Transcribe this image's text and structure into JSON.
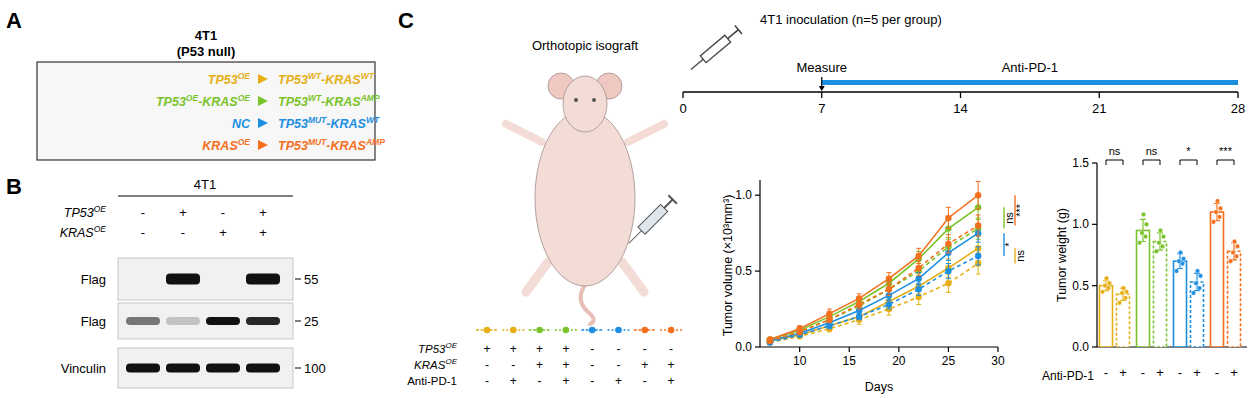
{
  "panel_labels": [
    "A",
    "B",
    "C"
  ],
  "panel_a": {
    "title": "4T1",
    "subtitle": "(P53 null)",
    "rows": [
      {
        "from": [
          {
            "text": "TP53",
            "sup": "OE"
          }
        ],
        "to": [
          {
            "text": "TP53",
            "sup": "WT"
          },
          {
            "text": "-KRAS",
            "sup": "WT"
          }
        ],
        "color": "#E6AF16"
      },
      {
        "from": [
          {
            "text": "TP53",
            "sup": "OE"
          },
          {
            "text": "-KRAS",
            "sup": "OE"
          }
        ],
        "to": [
          {
            "text": "TP53",
            "sup": "WT"
          },
          {
            "text": "-KRAS",
            "sup": "AMP"
          }
        ],
        "color": "#7BC32B"
      },
      {
        "from": [
          {
            "text": "NC"
          }
        ],
        "to": [
          {
            "text": "TP53",
            "sup": "MUT"
          },
          {
            "text": "-KRAS",
            "sup": "WT"
          }
        ],
        "color": "#1D8FE1"
      },
      {
        "from": [
          {
            "text": "KRAS",
            "sup": "OE"
          }
        ],
        "to": [
          {
            "text": "TP53",
            "sup": "MUT"
          },
          {
            "text": "-KRAS",
            "sup": "AMP"
          }
        ],
        "color": "#F4701F"
      }
    ]
  },
  "panel_b": {
    "title": "4T1",
    "conditions": [
      {
        "label": [
          {
            "text": "TP53",
            "sup": "OE"
          }
        ],
        "values": [
          "-",
          "+",
          "-",
          "+"
        ]
      },
      {
        "label": [
          {
            "text": "KRAS",
            "sup": "OE"
          }
        ],
        "values": [
          "-",
          "-",
          "+",
          "+"
        ]
      }
    ],
    "blots": [
      {
        "label": "Flag",
        "marker": 55,
        "bands": [
          0,
          1,
          0,
          1
        ]
      },
      {
        "label": "Flag",
        "marker": 25,
        "bands": [
          0.55,
          0.2,
          1,
          0.9
        ]
      },
      {
        "label": "Vinculin",
        "marker": 100,
        "bands": [
          1,
          1,
          1,
          1
        ]
      }
    ]
  },
  "panel_c": {
    "title": "Orthotopic isograft",
    "groups": {
      "rows": [
        {
          "label": [
            {
              "text": "TP53",
              "sup": "OE"
            }
          ],
          "values": [
            "+",
            "+",
            "+",
            "+",
            "-",
            "-",
            "-",
            "-"
          ]
        },
        {
          "label": [
            {
              "text": "KRAS",
              "sup": "OE"
            }
          ],
          "values": [
            "-",
            "-",
            "+",
            "+",
            "-",
            "-",
            "+",
            "+"
          ]
        },
        {
          "label": [
            {
              "text": "Anti-PD-1"
            }
          ],
          "values": [
            "-",
            "+",
            "-",
            "+",
            "-",
            "+",
            "-",
            "+"
          ]
        }
      ],
      "colors": [
        "#E6AF16",
        "#E6AF16",
        "#7BC32B",
        "#7BC32B",
        "#1D8FE1",
        "#1D8FE1",
        "#F4701F",
        "#F4701F"
      ]
    }
  },
  "chart_data": [
    {
      "type": "timeline",
      "title": "4T1 inoculation (n=5 per group)",
      "xlim": [
        0,
        28
      ],
      "xticks": [
        0,
        7,
        14,
        21,
        28
      ],
      "events": [
        {
          "label": "Measure",
          "x": 7
        }
      ],
      "periods": [
        {
          "label": "Anti-PD-1",
          "start": 7,
          "end": 28,
          "color": "#1D8FE1"
        }
      ]
    },
    {
      "type": "line",
      "x_label": "Days",
      "y_label": "Tumor volume (×10³mm³)",
      "x": [
        7,
        10,
        13,
        16,
        19,
        22,
        25,
        28
      ],
      "xlim": [
        6,
        30
      ],
      "xticks": [
        10,
        15,
        20,
        25,
        30
      ],
      "ylim": [
        0,
        1.1
      ],
      "yticks": [
        {
          "value": 0,
          "label": "0.0"
        },
        0.5,
        {
          "value": 1,
          "label": "1.0"
        }
      ],
      "marker": "circle",
      "series": [
        {
          "color": "#E6AF16",
          "line_style": "solid",
          "values": [
            0.04,
            0.08,
            0.14,
            0.2,
            0.3,
            0.4,
            0.52,
            0.65
          ],
          "errors": [
            0.01,
            0.02,
            0.02,
            0.03,
            0.04,
            0.05,
            0.06,
            0.08
          ]
        },
        {
          "color": "#E6AF16",
          "line_style": "dashed",
          "values": [
            0.03,
            0.07,
            0.12,
            0.18,
            0.25,
            0.33,
            0.42,
            0.55
          ],
          "errors": [
            0.01,
            0.01,
            0.02,
            0.03,
            0.04,
            0.05,
            0.06,
            0.07
          ]
        },
        {
          "color": "#7BC32B",
          "line_style": "solid",
          "values": [
            0.05,
            0.11,
            0.2,
            0.3,
            0.42,
            0.58,
            0.78,
            0.92
          ],
          "errors": [
            0.01,
            0.02,
            0.03,
            0.03,
            0.04,
            0.05,
            0.06,
            0.08
          ]
        },
        {
          "color": "#7BC32B",
          "line_style": "dashed",
          "values": [
            0.04,
            0.1,
            0.18,
            0.27,
            0.38,
            0.5,
            0.66,
            0.78
          ],
          "errors": [
            0.01,
            0.02,
            0.02,
            0.03,
            0.04,
            0.05,
            0.05,
            0.07
          ]
        },
        {
          "color": "#1D8FE1",
          "line_style": "solid",
          "values": [
            0.04,
            0.09,
            0.16,
            0.24,
            0.34,
            0.45,
            0.62,
            0.75
          ],
          "errors": [
            0.01,
            0.02,
            0.02,
            0.03,
            0.03,
            0.04,
            0.05,
            0.06
          ]
        },
        {
          "color": "#1D8FE1",
          "line_style": "dashed",
          "values": [
            0.03,
            0.08,
            0.14,
            0.2,
            0.28,
            0.38,
            0.5,
            0.6
          ],
          "errors": [
            0.01,
            0.01,
            0.02,
            0.02,
            0.03,
            0.04,
            0.05,
            0.06
          ]
        },
        {
          "color": "#F4701F",
          "line_style": "solid",
          "values": [
            0.05,
            0.12,
            0.22,
            0.32,
            0.45,
            0.6,
            0.85,
            1
          ],
          "errors": [
            0.01,
            0.02,
            0.03,
            0.03,
            0.04,
            0.05,
            0.07,
            0.09
          ]
        },
        {
          "color": "#F4701F",
          "line_style": "dashed",
          "values": [
            0.04,
            0.1,
            0.18,
            0.28,
            0.38,
            0.52,
            0.68,
            0.8
          ],
          "errors": [
            0.01,
            0.02,
            0.02,
            0.03,
            0.04,
            0.05,
            0.06,
            0.07
          ]
        }
      ],
      "annotations": [
        {
          "label": "ns",
          "series": [
            2,
            3
          ]
        },
        {
          "label": "*",
          "series": [
            4,
            5
          ]
        },
        {
          "label": "***",
          "series": [
            6,
            7
          ]
        },
        {
          "label": "ns",
          "series": [
            0,
            1
          ]
        }
      ]
    },
    {
      "type": "bar",
      "y_label": "Tumor weight (g)",
      "x_label": "Anti-PD-1",
      "categories": [
        "-",
        "+",
        "-",
        "+",
        "-",
        "+",
        "-",
        "+"
      ],
      "values": [
        0.5,
        0.43,
        0.95,
        0.86,
        0.7,
        0.53,
        1.1,
        0.78
      ],
      "errors": [
        0.04,
        0.05,
        0.09,
        0.07,
        0.06,
        0.07,
        0.07,
        0.07
      ],
      "points": [
        [
          0.45,
          0.48,
          0.5,
          0.52,
          0.56
        ],
        [
          0.36,
          0.4,
          0.44,
          0.45,
          0.48
        ],
        [
          0.85,
          0.9,
          0.93,
          1,
          1.08
        ],
        [
          0.78,
          0.82,
          0.85,
          0.9,
          0.95
        ],
        [
          0.62,
          0.68,
          0.7,
          0.72,
          0.77
        ],
        [
          0.44,
          0.48,
          0.52,
          0.58,
          0.62
        ],
        [
          1.02,
          1.06,
          1.1,
          1.13,
          1.19
        ],
        [
          0.7,
          0.74,
          0.77,
          0.82,
          0.86
        ]
      ],
      "colors": [
        "#E6AF16",
        "#E6AF16",
        "#7BC32B",
        "#7BC32B",
        "#1D8FE1",
        "#1D8FE1",
        "#F4701F",
        "#F4701F"
      ],
      "ylim": [
        0,
        1.5
      ],
      "yticks": [
        {
          "value": 0,
          "label": "0.0"
        },
        0.5,
        {
          "value": 1,
          "label": "1.0"
        },
        1.5
      ],
      "annotations": [
        {
          "label": "ns",
          "bars": [
            0,
            1
          ]
        },
        {
          "label": "ns",
          "bars": [
            2,
            3
          ]
        },
        {
          "label": "*",
          "bars": [
            4,
            5
          ]
        },
        {
          "label": "***",
          "bars": [
            6,
            7
          ]
        }
      ]
    }
  ]
}
